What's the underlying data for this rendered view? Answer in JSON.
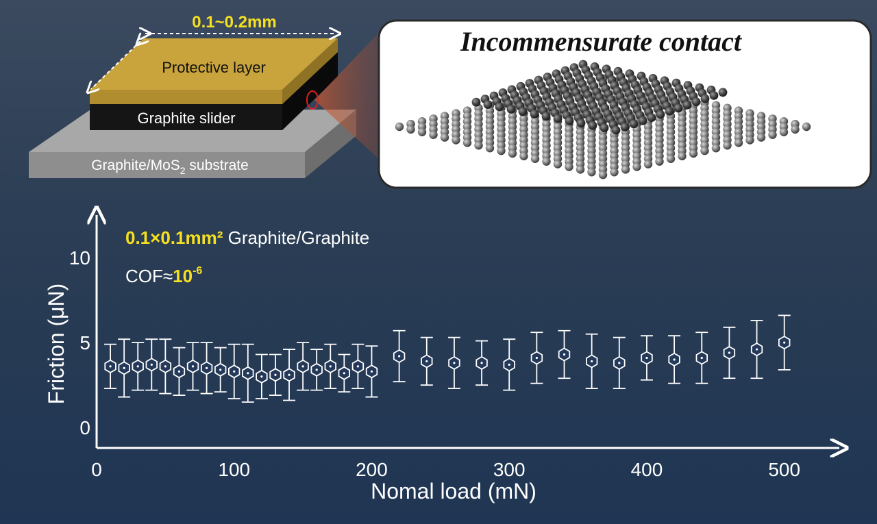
{
  "schematic": {
    "width_label": "0.1~0.2mm",
    "top_layer_label": "Protective layer",
    "slider_label": "Graphite slider",
    "substrate_prefix": "Graphite/MoS",
    "substrate_subscript": "2",
    "substrate_suffix": " substrate"
  },
  "inset": {
    "title": "Incommensurate contact"
  },
  "annotation": {
    "size_bold": "0.1×0.1mm²",
    "size_rest": " Graphite/Graphite",
    "cof_prefix": "COF≈",
    "cof_base": "10",
    "cof_exp": "-6"
  },
  "colors": {
    "accent_yellow": "#f5e020",
    "gold_layer": "#c9a43c",
    "slider_black": "#151515",
    "substrate_grey": "#8a8a8a"
  },
  "chart_data": {
    "type": "scatter",
    "title": "",
    "xlabel": "Nomal load (mN)",
    "ylabel": "Friction (μN)",
    "xlim": [
      0,
      540
    ],
    "ylim": [
      -1.2,
      12.5
    ],
    "xticks": [
      0,
      100,
      200,
      300,
      400,
      500
    ],
    "yticks": [
      0,
      5,
      10
    ],
    "grid": false,
    "marker": "hexagon",
    "series": [
      {
        "x": [
          10,
          20,
          30,
          40,
          50,
          60,
          70,
          80,
          90,
          100,
          110,
          120,
          130,
          140,
          150,
          160,
          170,
          180,
          190,
          200,
          220,
          240,
          260,
          280,
          300,
          320,
          340,
          360,
          380,
          400,
          420,
          440,
          460,
          480,
          500
        ],
        "y": [
          3.6,
          3.5,
          3.6,
          3.7,
          3.6,
          3.3,
          3.6,
          3.5,
          3.4,
          3.3,
          3.2,
          3.0,
          3.1,
          3.1,
          3.6,
          3.4,
          3.6,
          3.2,
          3.6,
          3.3,
          4.2,
          3.9,
          3.8,
          3.8,
          3.7,
          4.1,
          4.3,
          3.9,
          3.8,
          4.1,
          4.0,
          4.1,
          4.4,
          4.6,
          5.0
        ],
        "err": [
          1.3,
          1.7,
          1.4,
          1.5,
          1.6,
          1.4,
          1.4,
          1.5,
          1.3,
          1.6,
          1.7,
          1.3,
          1.2,
          1.5,
          1.4,
          1.2,
          1.3,
          1.1,
          1.3,
          1.5,
          1.5,
          1.4,
          1.5,
          1.3,
          1.5,
          1.5,
          1.4,
          1.6,
          1.5,
          1.3,
          1.4,
          1.5,
          1.5,
          1.7,
          1.6
        ]
      }
    ]
  }
}
